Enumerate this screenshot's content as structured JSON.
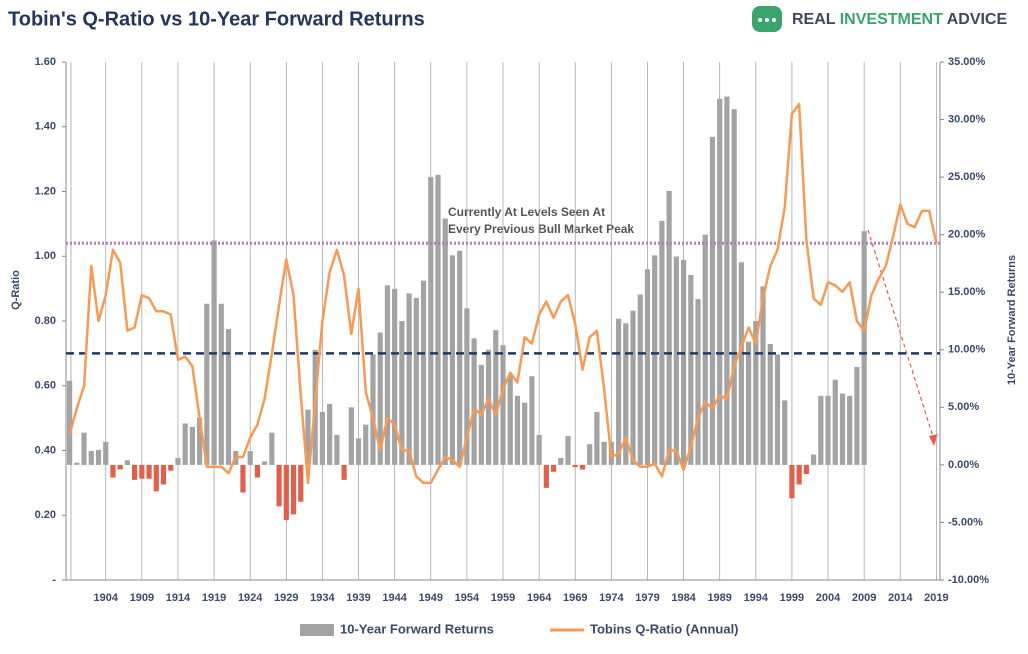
{
  "chart_data": {
    "type": "bar_line",
    "title": "Tobin's Q-Ratio vs 10-Year Forward Returns",
    "logo": [
      "REAL",
      "INVESTMENT",
      "ADVICE"
    ],
    "ylabel": "Q-Ratio",
    "y2label": "10-Year Forward Returns",
    "annotation": [
      "Currently At Levels Seen At",
      "Every Previous Bull Market Peak"
    ],
    "categories": [
      null,
      null,
      null,
      null,
      null,
      "1904",
      null,
      null,
      null,
      null,
      "1909",
      null,
      null,
      null,
      null,
      "1914",
      null,
      null,
      null,
      null,
      "1919",
      null,
      null,
      null,
      null,
      "1924",
      null,
      null,
      null,
      null,
      "1929",
      null,
      null,
      null,
      null,
      "1934",
      null,
      null,
      null,
      null,
      "1939",
      null,
      null,
      null,
      null,
      "1944",
      null,
      null,
      null,
      null,
      "1949",
      null,
      null,
      null,
      null,
      "1954",
      null,
      null,
      null,
      null,
      "1959",
      null,
      null,
      null,
      null,
      "1964",
      null,
      null,
      null,
      null,
      "1969",
      null,
      null,
      null,
      null,
      "1974",
      null,
      null,
      null,
      null,
      "1979",
      null,
      null,
      null,
      null,
      "1984",
      null,
      null,
      null,
      null,
      "1989",
      null,
      null,
      null,
      null,
      "1994",
      null,
      null,
      null,
      null,
      "1999",
      null,
      null,
      null,
      null,
      "2004",
      null,
      null,
      null,
      null,
      "2009",
      null,
      null,
      null,
      null,
      "2014",
      null,
      null,
      null,
      null,
      "2019"
    ],
    "series": [
      {
        "name": "10-Year Forward Returns",
        "type": "bar",
        "axis": "y2",
        "color": "#a3a3a3",
        "negative_color": "#e0604c",
        "values": [
          7.3,
          0.2,
          2.8,
          1.2,
          1.3,
          2.0,
          -1.1,
          -0.4,
          0.4,
          -1.3,
          -1.2,
          -1.2,
          -2.3,
          -1.7,
          -0.5,
          0.6,
          3.6,
          3.3,
          4.1,
          14.0,
          19.5,
          14.0,
          11.8,
          1.2,
          -2.4,
          1.2,
          -1.1,
          0.3,
          2.8,
          -3.6,
          -4.8,
          -4.3,
          -3.2,
          4.8,
          10.0,
          4.6,
          5.3,
          2.6,
          -1.3,
          5.0,
          2.3,
          3.5,
          9.6,
          11.5,
          15.6,
          15.3,
          12.5,
          14.9,
          14.5,
          16.0,
          25.0,
          25.2,
          21.4,
          18.2,
          18.6,
          13.6,
          11.0,
          8.7,
          10.0,
          11.7,
          10.4,
          7.8,
          6.0,
          5.4,
          7.7,
          2.6,
          -2.0,
          -0.6,
          0.6,
          2.5,
          -0.2,
          -0.4,
          1.8,
          4.6,
          2.0,
          2.0,
          12.7,
          12.3,
          13.4,
          14.8,
          17.0,
          18.2,
          21.2,
          23.8,
          18.1,
          17.8,
          16.5,
          14.4,
          20.0,
          28.5,
          31.8,
          32.0,
          30.9,
          17.6,
          10.7,
          12.5,
          15.5,
          10.5,
          9.6,
          5.6,
          -2.9,
          -1.7,
          -0.8,
          0.9,
          6.0,
          6.0,
          7.4,
          6.2,
          6.0,
          8.5,
          20.3,
          null,
          null,
          null,
          null,
          null,
          null,
          null,
          null,
          null,
          null
        ]
      },
      {
        "name": "Tobins Q-Ratio (Annual)",
        "type": "line",
        "color": "#f79a55",
        "values": [
          0.45,
          0.53,
          0.6,
          0.97,
          0.8,
          0.88,
          1.02,
          0.98,
          0.77,
          0.78,
          0.88,
          0.87,
          0.83,
          0.83,
          0.82,
          0.68,
          0.69,
          0.66,
          0.5,
          0.35,
          0.35,
          0.35,
          0.33,
          0.38,
          0.38,
          0.44,
          0.48,
          0.56,
          0.7,
          0.85,
          0.99,
          0.88,
          0.57,
          0.3,
          0.55,
          0.8,
          0.95,
          1.02,
          0.94,
          0.76,
          0.9,
          0.58,
          0.5,
          0.4,
          0.5,
          0.48,
          0.4,
          0.4,
          0.32,
          0.3,
          0.3,
          0.34,
          0.38,
          0.37,
          0.35,
          0.44,
          0.53,
          0.51,
          0.56,
          0.51,
          0.59,
          0.64,
          0.61,
          0.75,
          0.73,
          0.82,
          0.86,
          0.81,
          0.86,
          0.88,
          0.79,
          0.65,
          0.75,
          0.77,
          0.59,
          0.38,
          0.39,
          0.44,
          0.37,
          0.35,
          0.35,
          0.36,
          0.32,
          0.4,
          0.4,
          0.34,
          0.41,
          0.5,
          0.55,
          0.53,
          0.57,
          0.56,
          0.66,
          0.72,
          0.78,
          0.73,
          0.87,
          0.97,
          1.02,
          1.15,
          1.44,
          1.47,
          1.05,
          0.87,
          0.85,
          0.92,
          0.91,
          0.89,
          0.92,
          0.8,
          0.77,
          0.88,
          0.93,
          0.97,
          1.06,
          1.16,
          1.1,
          1.09,
          1.14,
          1.14,
          1.04
        ]
      }
    ],
    "reference_lines": [
      {
        "value": 1.04,
        "color": "#b07fc0",
        "style": "dotted"
      },
      {
        "value": 0.7,
        "color": "#1f3864",
        "style": "dashed"
      }
    ],
    "ylim": [
      0,
      1.6
    ],
    "yticks": [
      {
        "value": 0,
        "label": "-"
      },
      {
        "value": 0.2,
        "label": "0.20"
      },
      {
        "value": 0.4,
        "label": "0.40"
      },
      {
        "value": 0.6,
        "label": "0.60"
      },
      {
        "value": 0.8,
        "label": "0.80"
      },
      {
        "value": 1.0,
        "label": "1.00"
      },
      {
        "value": 1.2,
        "label": "1.20"
      },
      {
        "value": 1.4,
        "label": "1.40"
      },
      {
        "value": 1.6,
        "label": "1.60"
      }
    ],
    "y2lim": [
      -10,
      35
    ],
    "y2ticks": [
      {
        "value": -10,
        "label": "-10.00%"
      },
      {
        "value": -5,
        "label": "-5.00%"
      },
      {
        "value": 0,
        "label": "0.00%"
      },
      {
        "value": 5,
        "label": "5.00%"
      },
      {
        "value": 10,
        "label": "10.00%"
      },
      {
        "value": 15,
        "label": "15.00%"
      },
      {
        "value": 20,
        "label": "20.00%"
      },
      {
        "value": 25,
        "label": "25.00%"
      },
      {
        "value": 30,
        "label": "30.00%"
      },
      {
        "value": 35,
        "label": "35.00%"
      }
    ],
    "grid": true
  }
}
